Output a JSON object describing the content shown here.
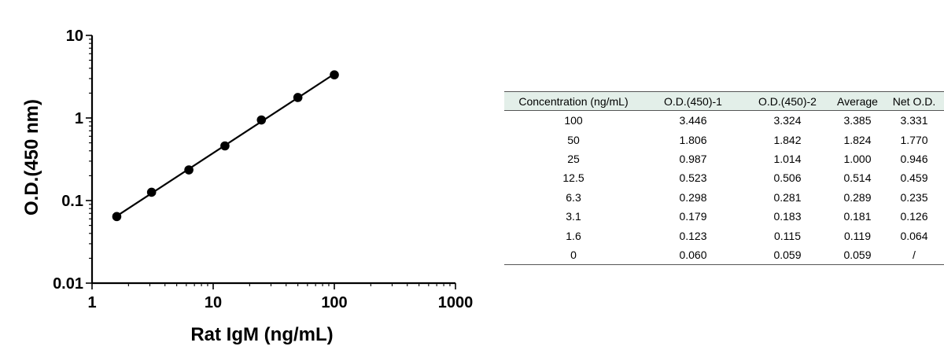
{
  "chart_data": {
    "type": "scatter",
    "xlabel": "Rat IgM (ng/mL)",
    "ylabel": "O.D.(450 nm)",
    "xscale": "log",
    "yscale": "log",
    "xlim": [
      1,
      1000
    ],
    "ylim": [
      0.01,
      10
    ],
    "x_ticks": [
      "1",
      "10",
      "100",
      "1000"
    ],
    "y_ticks": [
      "0.01",
      "0.1",
      "1",
      "10"
    ],
    "grid": false,
    "fit_line": true,
    "series": [
      {
        "x": [
          1.6,
          3.1,
          6.3,
          12.5,
          25,
          50,
          100
        ],
        "y": [
          0.064,
          0.126,
          0.235,
          0.459,
          0.946,
          1.77,
          3.331
        ]
      }
    ]
  },
  "table": {
    "headers": [
      "Concentration (ng/mL)",
      "O.D.(450)-1",
      "O.D.(450)-2",
      "Average",
      "Net O.D."
    ],
    "rows": [
      [
        "100",
        "3.446",
        "3.324",
        "3.385",
        "3.331"
      ],
      [
        "50",
        "1.806",
        "1.842",
        "1.824",
        "1.770"
      ],
      [
        "25",
        "0.987",
        "1.014",
        "1.000",
        "0.946"
      ],
      [
        "12.5",
        "0.523",
        "0.506",
        "0.514",
        "0.459"
      ],
      [
        "6.3",
        "0.298",
        "0.281",
        "0.289",
        "0.235"
      ],
      [
        "3.1",
        "0.179",
        "0.183",
        "0.181",
        "0.126"
      ],
      [
        "1.6",
        "0.123",
        "0.115",
        "0.119",
        "0.064"
      ],
      [
        "0",
        "0.060",
        "0.059",
        "0.059",
        "/"
      ]
    ]
  }
}
